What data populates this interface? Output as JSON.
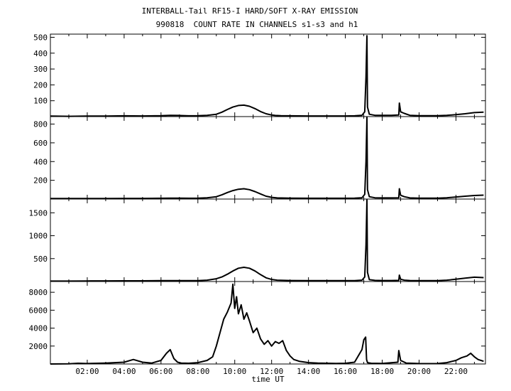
{
  "title": "INTERBALL-Tail RF15-I HARD/SOFT X-RAY EMISSION",
  "subtitle": "990818  COUNT RATE IN CHANNELS s1-s3 and h1",
  "chart_data": {
    "type": "line",
    "xlabel": "time UT",
    "x_unit": "hours UT",
    "xlim": [
      0,
      23.6
    ],
    "x_ticks": [
      2,
      4,
      6,
      8,
      10,
      12,
      14,
      16,
      18,
      20,
      22
    ],
    "x_tick_labels": [
      "02:00",
      "04:00",
      "06:00",
      "08:00",
      "10:00",
      "12:00",
      "14:00",
      "16:00",
      "18:00",
      "20:00",
      "22:00"
    ],
    "panels": [
      {
        "channel": "s1",
        "ylim": [
          0,
          520
        ],
        "y_ticks": [
          100,
          200,
          300,
          400,
          500
        ],
        "y_tick_labels": [
          "100",
          "200",
          "300",
          "400",
          "500"
        ],
        "series": [
          {
            "x": [
              0.0,
              1.0,
              2.0,
              3.0,
              4.0,
              5.0,
              6.0,
              6.5,
              7.0,
              7.5,
              8.0,
              8.5,
              9.0,
              9.3,
              9.6,
              9.9,
              10.2,
              10.5,
              10.8,
              11.1,
              11.4,
              11.7,
              12.0,
              12.2,
              12.5,
              13.0,
              14.0,
              15.0,
              16.0,
              16.5,
              16.9,
              17.05,
              17.12,
              17.17,
              17.2,
              17.3,
              17.6,
              18.0,
              18.5,
              18.9,
              18.93,
              19.0,
              19.2,
              19.5,
              20.0,
              21.0,
              21.5,
              22.0,
              22.5,
              23.0,
              23.5
            ],
            "y": [
              3,
              2,
              3,
              3,
              5,
              4,
              6,
              8,
              7,
              5,
              6,
              8,
              15,
              28,
              45,
              60,
              70,
              72,
              65,
              50,
              32,
              18,
              10,
              7,
              6,
              5,
              4,
              4,
              4,
              5,
              8,
              30,
              250,
              510,
              60,
              15,
              8,
              8,
              8,
              10,
              85,
              30,
              20,
              8,
              6,
              6,
              8,
              12,
              18,
              25,
              28
            ]
          }
        ]
      },
      {
        "channel": "s2",
        "ylim": [
          0,
          880
        ],
        "y_ticks": [
          200,
          400,
          600,
          800
        ],
        "y_tick_labels": [
          "200",
          "400",
          "600",
          "800"
        ],
        "series": [
          {
            "x": [
              0.0,
              1.0,
              2.0,
              3.0,
              4.0,
              5.0,
              6.0,
              6.5,
              7.0,
              7.5,
              8.0,
              8.5,
              9.0,
              9.3,
              9.6,
              9.9,
              10.2,
              10.5,
              10.8,
              11.1,
              11.4,
              11.7,
              12.0,
              12.3,
              13.0,
              14.0,
              15.0,
              16.0,
              16.5,
              16.9,
              17.05,
              17.12,
              17.17,
              17.2,
              17.3,
              17.6,
              18.0,
              18.5,
              18.9,
              18.93,
              19.0,
              19.2,
              19.5,
              20.0,
              21.0,
              21.5,
              22.0,
              22.5,
              23.0,
              23.5
            ],
            "y": [
              5,
              5,
              5,
              6,
              7,
              7,
              8,
              10,
              9,
              8,
              10,
              14,
              25,
              45,
              70,
              90,
              105,
              110,
              100,
              80,
              55,
              30,
              18,
              12,
              9,
              8,
              8,
              8,
              9,
              14,
              50,
              400,
              870,
              100,
              25,
              14,
              12,
              12,
              14,
              110,
              40,
              25,
              12,
              10,
              10,
              14,
              22,
              30,
              38,
              42
            ]
          }
        ]
      },
      {
        "channel": "s3",
        "ylim": [
          0,
          1800
        ],
        "y_ticks": [
          500,
          1000,
          1500
        ],
        "y_tick_labels": [
          "500",
          "1000",
          "1500"
        ],
        "series": [
          {
            "x": [
              0.0,
              1.0,
              2.0,
              3.0,
              4.0,
              5.0,
              6.0,
              7.0,
              8.0,
              8.5,
              9.0,
              9.3,
              9.6,
              9.9,
              10.2,
              10.5,
              10.8,
              11.1,
              11.4,
              11.7,
              12.0,
              12.3,
              13.0,
              14.0,
              15.0,
              16.0,
              16.5,
              16.9,
              17.05,
              17.12,
              17.17,
              17.2,
              17.3,
              17.6,
              18.0,
              18.5,
              18.9,
              18.93,
              19.0,
              19.2,
              19.5,
              20.0,
              21.0,
              21.5,
              22.0,
              22.5,
              23.0,
              23.5
            ],
            "y": [
              10,
              10,
              12,
              14,
              16,
              16,
              18,
              18,
              20,
              30,
              60,
              100,
              160,
              230,
              290,
              310,
              290,
              230,
              150,
              80,
              45,
              30,
              22,
              18,
              18,
              18,
              20,
              30,
              100,
              800,
              1780,
              200,
              40,
              25,
              22,
              22,
              25,
              140,
              50,
              30,
              22,
              20,
              20,
              30,
              50,
              75,
              95,
              85
            ]
          }
        ]
      },
      {
        "channel": "h1",
        "ylim": [
          0,
          9200
        ],
        "y_ticks": [
          2000,
          4000,
          6000,
          8000
        ],
        "y_tick_labels": [
          "2000",
          "4000",
          "6000",
          "8000"
        ],
        "series": [
          {
            "x": [
              0.0,
              1.0,
              1.5,
              2.0,
              3.0,
              4.0,
              4.5,
              5.0,
              5.5,
              6.0,
              6.3,
              6.5,
              6.7,
              6.9,
              7.1,
              7.5,
              8.0,
              8.5,
              8.8,
              9.0,
              9.2,
              9.4,
              9.6,
              9.8,
              9.9,
              10.0,
              10.1,
              10.2,
              10.35,
              10.5,
              10.65,
              10.8,
              11.0,
              11.2,
              11.4,
              11.6,
              11.8,
              12.0,
              12.2,
              12.4,
              12.6,
              12.8,
              13.0,
              13.2,
              13.5,
              14.0,
              14.5,
              15.0,
              15.5,
              16.0,
              16.5,
              16.9,
              17.0,
              17.1,
              17.15,
              17.2,
              17.4,
              18.0,
              18.85,
              18.9,
              19.0,
              19.3,
              20.0,
              20.5,
              21.0,
              21.5,
              22.0,
              22.3,
              22.6,
              22.8,
              23.0,
              23.2,
              23.5
            ],
            "y": [
              0,
              20,
              80,
              50,
              100,
              200,
              500,
              200,
              100,
              400,
              1200,
              1600,
              600,
              200,
              100,
              80,
              150,
              400,
              800,
              2000,
              3500,
              5000,
              5800,
              6800,
              8900,
              6200,
              7500,
              5600,
              6600,
              5000,
              5700,
              4800,
              3500,
              4000,
              2800,
              2200,
              2600,
              2000,
              2500,
              2300,
              2600,
              1500,
              900,
              500,
              300,
              150,
              100,
              80,
              60,
              80,
              200,
              1600,
              2700,
              3000,
              500,
              150,
              80,
              60,
              200,
              1500,
              400,
              100,
              50,
              40,
              50,
              150,
              400,
              700,
              900,
              1200,
              800,
              500,
              300
            ]
          }
        ]
      }
    ]
  }
}
